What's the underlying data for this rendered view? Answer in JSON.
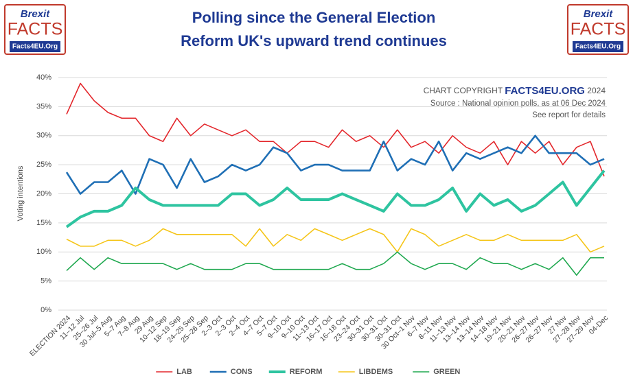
{
  "logo": {
    "brand": "Brexit",
    "name": "FACTS",
    "site": "Facts4EU.Org"
  },
  "chart_data": {
    "type": "line",
    "title": "Polling since the General Election",
    "subtitle": "Reform UK's upward trend continues",
    "copyright": {
      "prefix": "CHART COPYRIGHT",
      "brand": "FACTS4EU.ORG",
      "year": "2024"
    },
    "source": "Source : National opinion polls, as at 06 Dec 2024",
    "note": "See report for details",
    "y_label": "Voting intentions",
    "categories": [
      "ELECTION 2024",
      "11–12 Jul",
      "25–26 Jul",
      "30 Jul–5 Aug",
      "5–7 Aug",
      "7–8 Aug",
      "29 Aug",
      "10–12 Sep",
      "18–19 Sep",
      "24–25 Sep",
      "25–26 Sep",
      "2–3 Oct",
      "2–3 Oct",
      "2–4 Oct",
      "4–7 Oct",
      "5–7 Oct",
      "9–10 Oct",
      "9–10 Oct",
      "11–13 Oct",
      "16–17 Oct",
      "16–18 Oct",
      "23–24 Oct",
      "30–31 Oct",
      "30–31 Oct",
      "30–31 Oct",
      "30 Oct–1 Nov",
      "6–7 Nov",
      "8–11 Nov",
      "11–13 Nov",
      "13–14 Nov",
      "13–14 Nov",
      "14–18 Nov",
      "19–21 Nov",
      "20–21 Nov",
      "26–27 Nov",
      "26–27 Nov",
      "27 Nov",
      "27–28 Nov",
      "27–29 Nov",
      "04-Dec"
    ],
    "series": [
      {
        "name": "LAB",
        "color": "#e3262b",
        "width": 1.6,
        "values": [
          33.7,
          39,
          36,
          34,
          33,
          33,
          30,
          29,
          33,
          30,
          32,
          31,
          30,
          31,
          29,
          29,
          27,
          29,
          29,
          28,
          31,
          29,
          30,
          28,
          31,
          28,
          29,
          27,
          30,
          28,
          27,
          29,
          25,
          29,
          27,
          29,
          25,
          28,
          29,
          23
        ]
      },
      {
        "name": "CONS",
        "color": "#1f6fb5",
        "width": 2.6,
        "values": [
          23.7,
          20,
          22,
          22,
          24,
          20,
          26,
          25,
          21,
          26,
          22,
          23,
          25,
          24,
          25,
          28,
          27,
          24,
          25,
          25,
          24,
          24,
          24,
          29,
          24,
          26,
          25,
          29,
          24,
          27,
          26,
          27,
          28,
          27,
          30,
          27,
          27,
          27,
          25,
          26
        ]
      },
      {
        "name": "REFORM",
        "color": "#2ec4a0",
        "width": 4,
        "values": [
          14.3,
          16,
          17,
          17,
          18,
          21,
          19,
          18,
          18,
          18,
          18,
          18,
          20,
          20,
          18,
          19,
          21,
          19,
          19,
          19,
          20,
          19,
          18,
          17,
          20,
          18,
          18,
          19,
          21,
          17,
          20,
          18,
          19,
          17,
          18,
          20,
          22,
          18,
          21,
          24
        ]
      },
      {
        "name": "LIBDEMS",
        "color": "#f5c518",
        "width": 1.6,
        "values": [
          12.2,
          11,
          11,
          12,
          12,
          11,
          12,
          14,
          13,
          13,
          13,
          13,
          13,
          11,
          14,
          11,
          13,
          12,
          14,
          13,
          12,
          13,
          14,
          13,
          10,
          14,
          13,
          11,
          12,
          13,
          12,
          12,
          13,
          12,
          12,
          12,
          12,
          13,
          10,
          11
        ]
      },
      {
        "name": "GREEN",
        "color": "#1fa84f",
        "width": 1.6,
        "values": [
          6.8,
          9,
          7,
          9,
          8,
          8,
          8,
          8,
          7,
          8,
          7,
          7,
          7,
          8,
          8,
          7,
          7,
          7,
          7,
          7,
          8,
          7,
          7,
          8,
          10,
          8,
          7,
          8,
          8,
          7,
          9,
          8,
          8,
          7,
          8,
          7,
          9,
          6,
          9,
          9
        ]
      }
    ],
    "ylim": [
      0,
      40
    ],
    "yticks": [
      {
        "value": 0,
        "label": "0%"
      },
      {
        "value": 5,
        "label": "5%"
      },
      {
        "value": 10,
        "label": "10%"
      },
      {
        "value": 15,
        "label": "15%"
      },
      {
        "value": 20,
        "label": "20%"
      },
      {
        "value": 25,
        "label": "25%"
      },
      {
        "value": 30,
        "label": "30%"
      },
      {
        "value": 35,
        "label": "35%"
      },
      {
        "value": 40,
        "label": "40%"
      }
    ],
    "grid": true,
    "legend": "bottom"
  }
}
